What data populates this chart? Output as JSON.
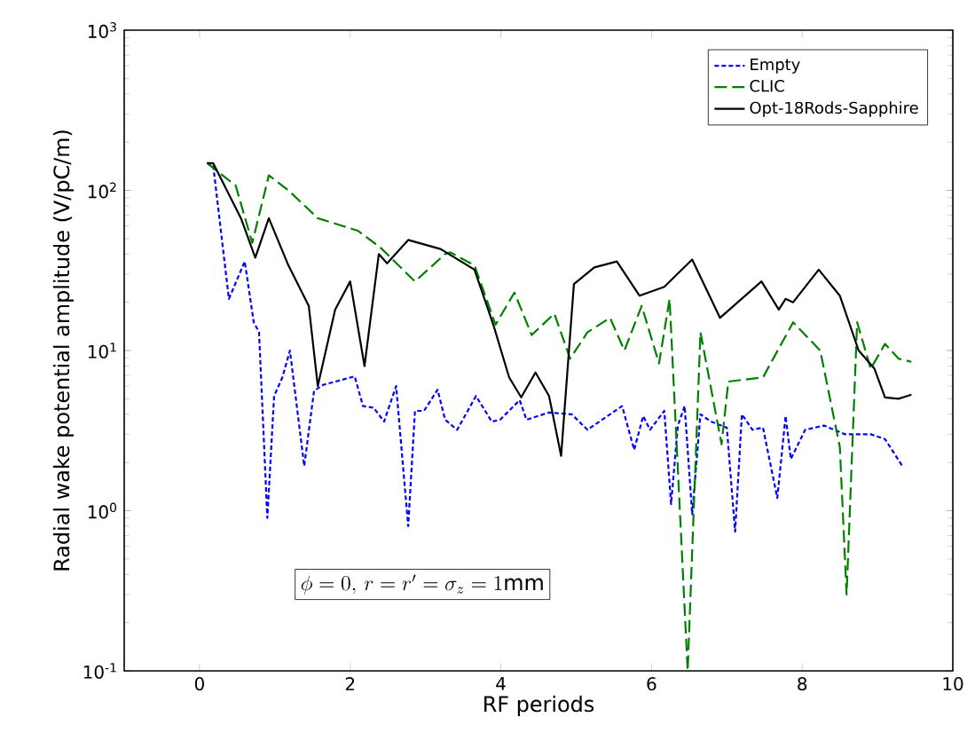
{
  "chart_data": {
    "type": "line",
    "xlabel": "RF periods",
    "ylabel": "Radial wake potential amplitude (V/pC/m)",
    "log": "y",
    "xlim": [
      -1,
      10
    ],
    "ylim": [
      0.1,
      1000
    ],
    "xticks": [
      0,
      2,
      4,
      6,
      8,
      10
    ],
    "yticks": [
      {
        "value": 0.1,
        "label": "10$^{-1}$"
      },
      {
        "value": 1,
        "label": "10$^{0}$"
      },
      {
        "value": 10,
        "label": "10$^{1}$"
      },
      {
        "value": 100,
        "label": "10$^{2}$"
      },
      {
        "value": 1000,
        "label": "10$^{3}$"
      }
    ],
    "grid": false,
    "legend": "top right",
    "marker": "none",
    "annotations": [
      "\\phi=0,\\, r=r'=\\sigma_z=1\\mathrm{mm}"
    ],
    "series": [
      {
        "name": "Empty",
        "color": "#0000ff",
        "line_style": "dotted",
        "x": [
          0.1,
          0.18,
          0.39,
          0.6,
          0.72,
          0.79,
          0.9,
          0.99,
          1.1,
          1.2,
          1.39,
          1.52,
          1.64,
          2.06,
          2.17,
          2.31,
          2.45,
          2.61,
          2.77,
          2.86,
          2.98,
          3.16,
          3.26,
          3.42,
          3.67,
          3.88,
          3.99,
          4.25,
          4.34,
          4.64,
          4.94,
          5.15,
          5.61,
          5.77,
          5.89,
          5.98,
          6.17,
          6.26,
          6.35,
          6.44,
          6.54,
          6.65,
          6.79,
          7.0,
          7.11,
          7.2,
          7.34,
          7.48,
          7.67,
          7.78,
          7.85,
          8.04,
          8.29,
          8.57,
          8.91,
          9.1,
          9.33
        ],
        "values": [
          148,
          145,
          21,
          36,
          15,
          13,
          0.9,
          5.2,
          6.8,
          10,
          1.9,
          5.6,
          6.1,
          6.9,
          4.5,
          4.4,
          3.6,
          6,
          0.8,
          4.2,
          4.2,
          5.7,
          3.7,
          3.2,
          5.2,
          3.6,
          3.7,
          4.9,
          3.7,
          4.1,
          4.0,
          3.2,
          4.5,
          2.4,
          3.9,
          3.2,
          4.2,
          1.1,
          3.4,
          4.5,
          0.95,
          4.0,
          3.6,
          3.3,
          0.74,
          4.0,
          3.2,
          3.3,
          1.2,
          3.9,
          2.1,
          3.2,
          3.4,
          3.0,
          3.0,
          2.8,
          1.9
        ]
      },
      {
        "name": "CLIC",
        "color": "#008000",
        "line_style": "dashed",
        "x": [
          0.1,
          0.48,
          0.7,
          0.92,
          1.18,
          1.57,
          2.1,
          2.4,
          2.86,
          3.26,
          3.33,
          3.65,
          3.93,
          4.18,
          4.41,
          4.71,
          4.92,
          5.15,
          5.45,
          5.64,
          5.87,
          6.1,
          6.24,
          6.48,
          6.65,
          6.93,
          7.02,
          7.48,
          7.88,
          8.24,
          8.5,
          8.59,
          8.73,
          8.91,
          9.1,
          9.28,
          9.45
        ],
        "values": [
          148,
          107,
          47,
          124,
          100,
          67,
          56,
          44,
          27,
          40,
          41,
          34,
          14.5,
          23,
          12.5,
          17,
          8.9,
          13,
          16,
          10,
          19,
          8.3,
          21,
          0.1,
          13,
          2.6,
          6.4,
          6.8,
          15,
          10,
          2.5,
          0.3,
          15,
          7.7,
          11,
          8.9,
          8.5
        ]
      },
      {
        "name": "Opt-18Rods-Sapphire",
        "color": "#000000",
        "line_style": "solid",
        "x": [
          0.1,
          0.18,
          0.55,
          0.74,
          0.92,
          1.18,
          1.45,
          1.57,
          1.8,
          2.0,
          2.19,
          2.38,
          2.49,
          2.77,
          3.2,
          3.65,
          3.9,
          4.11,
          4.27,
          4.46,
          4.64,
          4.8,
          4.97,
          5.24,
          5.54,
          5.84,
          6.17,
          6.54,
          6.91,
          7.46,
          7.69,
          7.78,
          7.88,
          8.22,
          8.5,
          8.75,
          8.96,
          9.1,
          9.28,
          9.45
        ],
        "values": [
          148,
          148,
          67,
          38,
          67,
          34,
          19,
          6,
          18,
          27,
          8,
          40,
          35,
          49,
          43,
          32,
          14.5,
          6.8,
          5.1,
          7.3,
          5.2,
          2.2,
          26,
          33,
          36,
          22,
          25,
          37,
          16,
          27,
          18,
          21,
          20,
          32,
          22,
          10,
          7.7,
          5.1,
          5.0,
          5.3
        ]
      }
    ]
  }
}
